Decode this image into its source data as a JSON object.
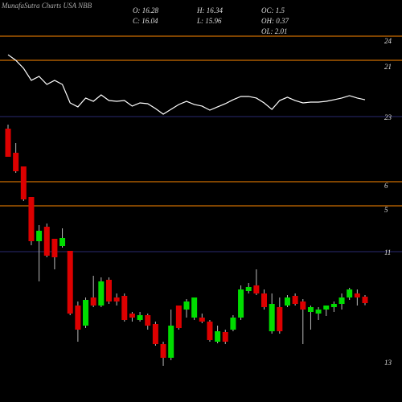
{
  "chart_data": {
    "type": "candlestick",
    "title": "MunafaSutra Charts USA NBB",
    "info": [
      "O: 16.28",
      "H: 16.34",
      "OC: 1.5",
      "C: 16.04",
      "L: 15.96",
      "OH: 0.37",
      "OL: 2.01"
    ],
    "upper_panel_labels": [
      "24",
      "21",
      "23"
    ],
    "lower_panel_labels": [
      "6",
      "5",
      "11",
      "13"
    ],
    "up_color": "#00dd00",
    "down_color": "#dd0000",
    "line_color": "#ffffff",
    "ylim": [
      12.8,
      22.7
    ],
    "indicator_ylim": [
      0,
      100
    ],
    "open": [
      22.55,
      21.65,
      21.14,
      20,
      18.35,
      18.89,
      18.44,
      18.17,
      17.99,
      15.95,
      15.2,
      16.25,
      15.95,
      16.91,
      16.25,
      16.31,
      15.65,
      15.41,
      15.59,
      15.26,
      14.51,
      14,
      15.95,
      15.8,
      15.5,
      15.5,
      15.35,
      14.6,
      14.96,
      15.05,
      15.5,
      16.49,
      16.7,
      16.4,
      14.99,
      15.89,
      15.95,
      16.31,
      16.1,
      15.71,
      15.65,
      15.8,
      15.89,
      16.01,
      16.25,
      16.4,
      16.28
    ],
    "high": [
      22.7,
      22.01,
      21.14,
      20,
      18.95,
      19.01,
      18.44,
      18.83,
      17.99,
      16.1,
      16.25,
      17.06,
      17,
      17,
      16.4,
      16.4,
      15.71,
      15.71,
      15.65,
      15.35,
      14.6,
      15.8,
      15.95,
      16.19,
      16.25,
      15.65,
      15.41,
      15.2,
      15.05,
      15.59,
      16.7,
      16.79,
      17.3,
      16.55,
      16.4,
      16.25,
      16.34,
      16.4,
      16.19,
      15.95,
      15.89,
      15.95,
      16.1,
      16.4,
      16.61,
      16.55,
      16.34
    ],
    "low": [
      21.5,
      20.9,
      19.85,
      18.2,
      16.85,
      17.75,
      17.3,
      18.11,
      15.59,
      14.6,
      15.11,
      15.89,
      15.89,
      16.01,
      15.95,
      15.35,
      15.35,
      15.35,
      15.05,
      14.45,
      13.7,
      13.91,
      15.05,
      15.5,
      15.41,
      15.29,
      14.6,
      14.54,
      14.51,
      14.99,
      15.41,
      16.4,
      16.34,
      15.8,
      14.9,
      14.9,
      15.89,
      15.95,
      14.51,
      15.05,
      15.41,
      15.56,
      15.71,
      15.8,
      16.16,
      15.95,
      15.96
    ],
    "close": [
      21.5,
      20.96,
      19.91,
      18.35,
      18.74,
      17.81,
      17.75,
      18.47,
      15.65,
      15.05,
      16.16,
      15.95,
      16.85,
      16.1,
      16.1,
      15.41,
      15.5,
      15.59,
      15.2,
      14.51,
      14,
      15.2,
      15.11,
      16.1,
      16.25,
      15.35,
      14.66,
      14.99,
      14.6,
      15.5,
      16.55,
      16.64,
      16.4,
      15.89,
      16.01,
      14.99,
      16.25,
      16.01,
      15.8,
      15.89,
      15.8,
      15.95,
      16.01,
      16.25,
      16.55,
      16.25,
      16.04
    ],
    "indicator": [
      74.5,
      68.2,
      59.1,
      45.5,
      50,
      40.9,
      45.5,
      40.9,
      20,
      15.5,
      25.5,
      21.8,
      29.1,
      22.7,
      21.8,
      22.7,
      16.4,
      20,
      19.1,
      13.6,
      7.3,
      12.7,
      18.2,
      21.8,
      18.2,
      16.4,
      11.8,
      15.5,
      19.1,
      23.6,
      27.3,
      27.3,
      25.5,
      20,
      12.7,
      22.7,
      26.4,
      22.7,
      20,
      20.9,
      20.9,
      21.8,
      23.6,
      25.5,
      28.2,
      25.5,
      23.6
    ]
  }
}
